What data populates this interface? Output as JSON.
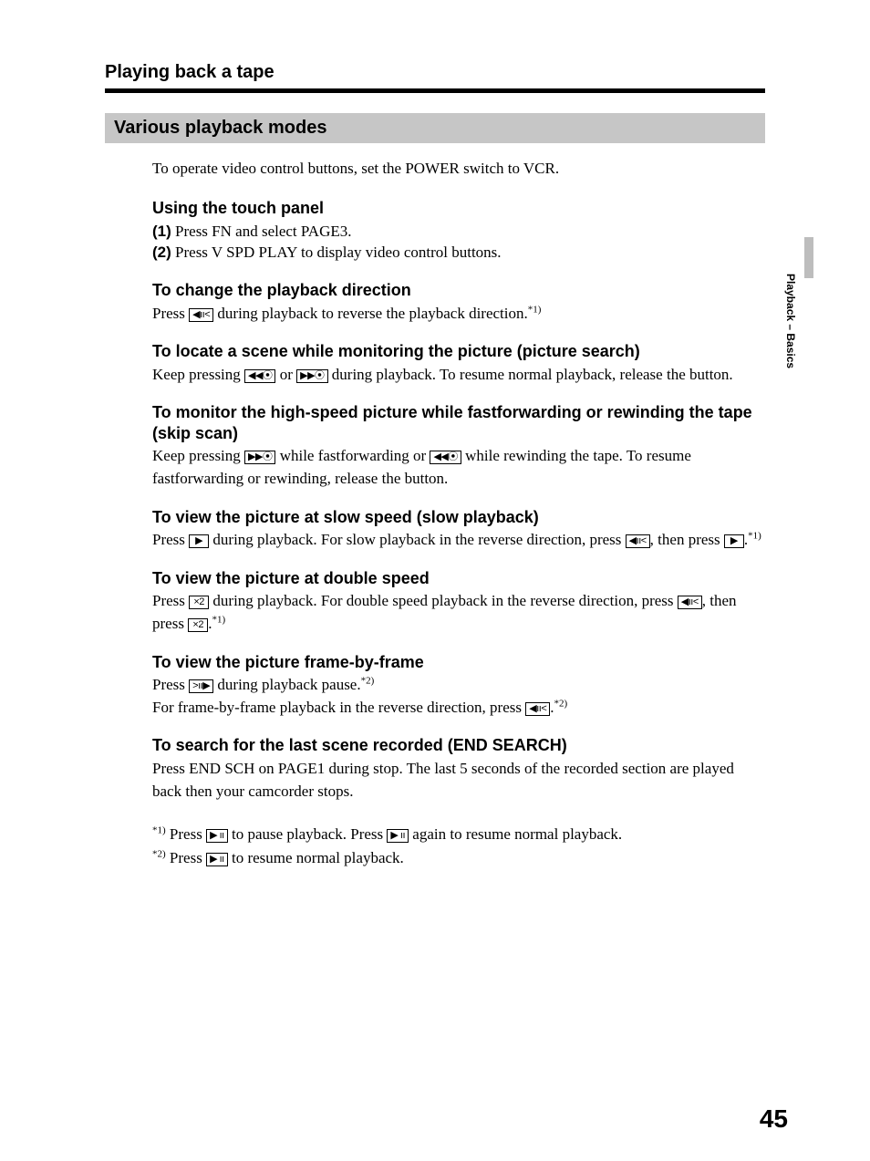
{
  "page_title": "Playing back a tape",
  "section_bar": "Various playback modes",
  "intro": "To operate video control buttons, set the POWER switch to VCR.",
  "touch_panel": {
    "heading": "Using the touch panel",
    "step1_num": "(1)",
    "step1_text": " Press FN and select PAGE3.",
    "step2_num": "(2)",
    "step2_text": " Press V SPD PLAY to display video control buttons."
  },
  "direction": {
    "heading": "To change the playback direction",
    "p1a": "Press ",
    "icon1": "◀ıı<",
    "p1b": " during playback to reverse the playback direction.",
    "ref1": "*1)"
  },
  "picture_search": {
    "heading": "To locate a scene while monitoring the picture (picture search)",
    "p1a": "Keep pressing ",
    "icon1": "◀◀⦿",
    "p1b": " or ",
    "icon2": "▶▶⦿",
    "p1c": " during playback. To resume normal playback, release the button."
  },
  "skip_scan": {
    "heading": "To monitor the high-speed picture while fastforwarding or rewinding the tape (skip scan)",
    "p1a": "Keep pressing ",
    "icon1": "▶▶⦿",
    "p1b": " while fastforwarding or ",
    "icon2": "◀◀⦿",
    "p1c": " while rewinding the tape. To resume fastforwarding or rewinding, release the button."
  },
  "slow": {
    "heading": "To view the picture at slow speed (slow playback)",
    "p1a": "Press ",
    "icon1": "▶",
    "p1b": " during playback. For slow playback in the reverse direction, press ",
    "icon2": "◀ıı<",
    "p1c": ", then press ",
    "icon3": "▶",
    "p1d": ".",
    "ref1": "*1)"
  },
  "double": {
    "heading": "To view the picture at double speed",
    "p1a": "Press ",
    "icon1": "×2",
    "p1b": " during playback. For double speed playback in the reverse direction, press ",
    "icon2": "◀ıı<",
    "p1c": ", then press ",
    "icon3": "×2",
    "p1d": ".",
    "ref1": "*1)"
  },
  "frame": {
    "heading": "To view the picture frame-by-frame",
    "p1a": "Press ",
    "icon1": ">ıı▶",
    "p1b": " during playback pause.",
    "ref1": "*2)",
    "p2a": "For frame-by-frame playback in the reverse direction, press ",
    "icon2": "◀ıı<",
    "p2b": ".",
    "ref2": "*2)"
  },
  "end_search": {
    "heading": "To search for the last scene recorded (END SEARCH)",
    "p1": "Press END SCH on PAGE1 during stop. The last 5 seconds of the recorded section are played back then your camcorder stops."
  },
  "footnotes": {
    "f1_mark": "*1)",
    "f1a": " Press ",
    "f1_icon1": "▶ ıı",
    "f1b": " to pause playback. Press ",
    "f1_icon2": "▶ ıı",
    "f1c": " again to resume normal playback.",
    "f2_mark": "*2)",
    "f2a": " Press ",
    "f2_icon1": "▶ ıı",
    "f2b": " to resume normal playback."
  },
  "side_tab": "Playback – Basics",
  "page_number": "45"
}
